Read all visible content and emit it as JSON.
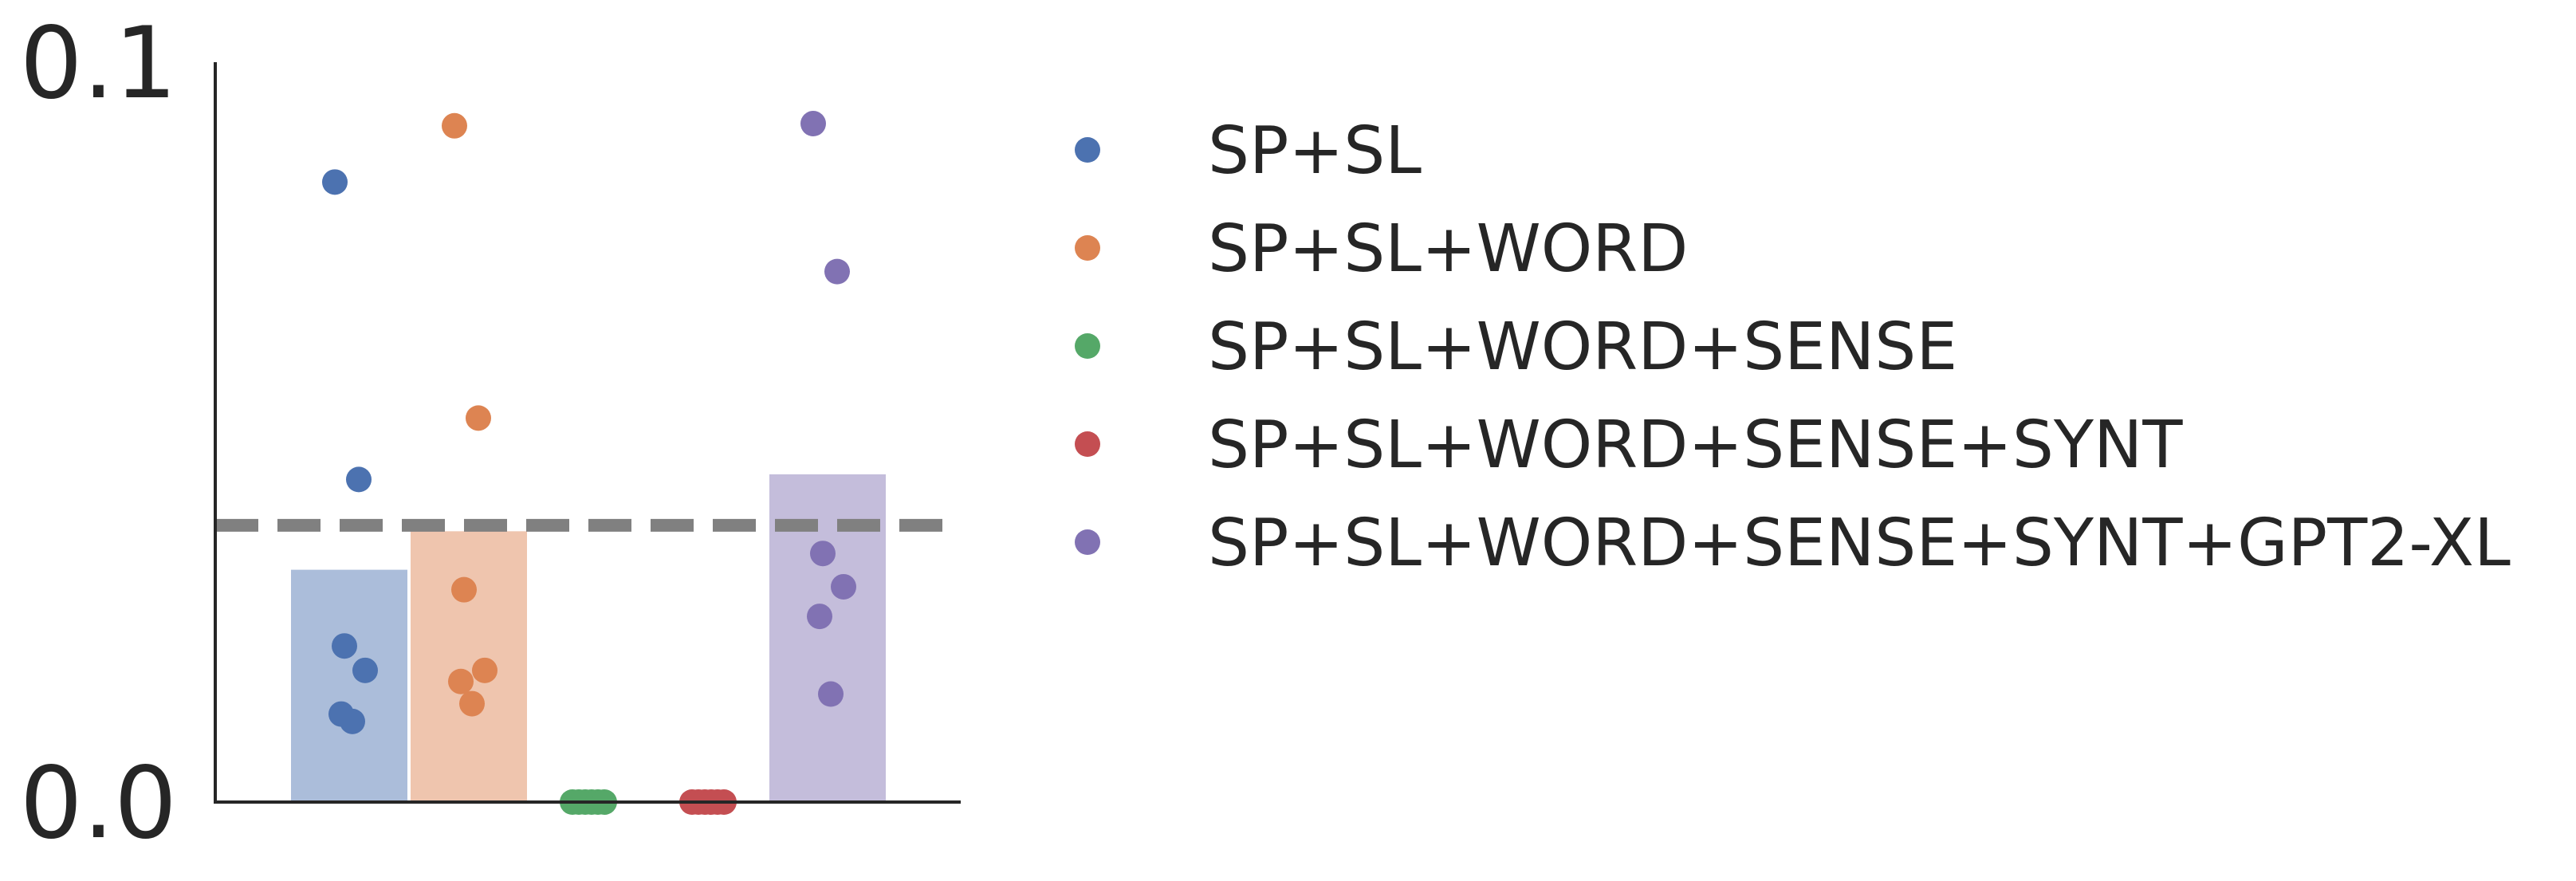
{
  "chart_data": {
    "type": "bar",
    "ylim": [
      0.0,
      0.1
    ],
    "yticks": [
      {
        "value": 0.0,
        "label": "0.0"
      },
      {
        "value": 0.1,
        "label": "0.1"
      }
    ],
    "reference_line": {
      "value": 0.0374,
      "color": "#808080",
      "style": "dashed"
    },
    "legend_position": "right",
    "grid": false,
    "series": [
      {
        "name": "SP+SL",
        "color": "#4c72b0",
        "bar_value": 0.0314,
        "points": [
          0.0838,
          0.0436,
          0.0211,
          0.0178,
          0.0119,
          0.0109
        ]
      },
      {
        "name": "SP+SL+WORD",
        "color": "#dd8452",
        "bar_value": 0.0366,
        "points": [
          0.0914,
          0.0519,
          0.0287,
          0.0178,
          0.0163,
          0.0133
        ]
      },
      {
        "name": "SP+SL+WORD+SENSE",
        "color": "#55a868",
        "bar_value": 0.0,
        "points": [
          0.0,
          0.0,
          0.0,
          0.0,
          0.0,
          0.0
        ]
      },
      {
        "name": "SP+SL+WORD+SENSE+SYNT",
        "color": "#c44e52",
        "bar_value": 0.0,
        "points": [
          0.0,
          0.0,
          0.0,
          0.0,
          0.0,
          0.0
        ]
      },
      {
        "name": "SP+SL+WORD+SENSE+SYNT+GPT2-XL",
        "color": "#8172b3",
        "bar_value": 0.0443,
        "points": [
          0.0917,
          0.0717,
          0.0336,
          0.0291,
          0.0251,
          0.0146
        ]
      }
    ]
  }
}
